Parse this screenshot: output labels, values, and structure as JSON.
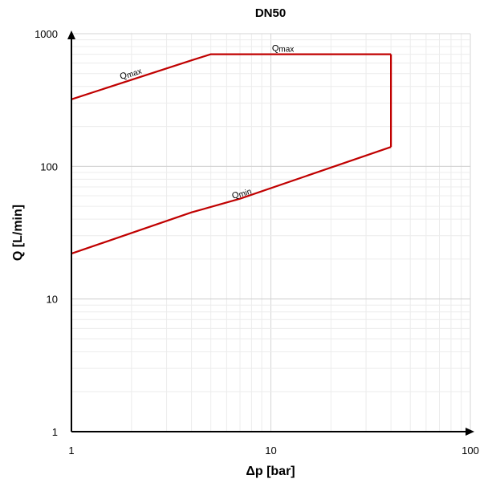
{
  "chart_data": {
    "type": "line",
    "title": "DN50",
    "xlabel": "Δp [bar]",
    "ylabel": "Q [L/min]",
    "x_scale": "log",
    "y_scale": "log",
    "xlim": [
      1,
      100
    ],
    "ylim": [
      1,
      1000
    ],
    "x_ticks": [
      1,
      10,
      100
    ],
    "y_ticks": [
      1,
      10,
      100,
      1000
    ],
    "grid": true,
    "series_color": "#c00000",
    "series": [
      {
        "name": "Qmax",
        "x": [
          1,
          4,
          5,
          40
        ],
        "y": [
          320,
          630,
          700,
          700
        ]
      },
      {
        "name": "Qmin",
        "x": [
          1,
          4,
          7,
          40
        ],
        "y": [
          22,
          45,
          57,
          140
        ]
      },
      {
        "name": "",
        "x": [
          40,
          40
        ],
        "y": [
          140,
          700
        ]
      }
    ],
    "annotations": [
      {
        "base": "Q",
        "sub": "max",
        "x": 2.0,
        "y": 480,
        "angle": -19
      },
      {
        "base": "Q",
        "sub": "max",
        "x": 11.5,
        "y": 740,
        "angle": 0
      },
      {
        "base": "Q",
        "sub": "min",
        "x": 7.2,
        "y": 60,
        "angle": -19
      }
    ]
  }
}
